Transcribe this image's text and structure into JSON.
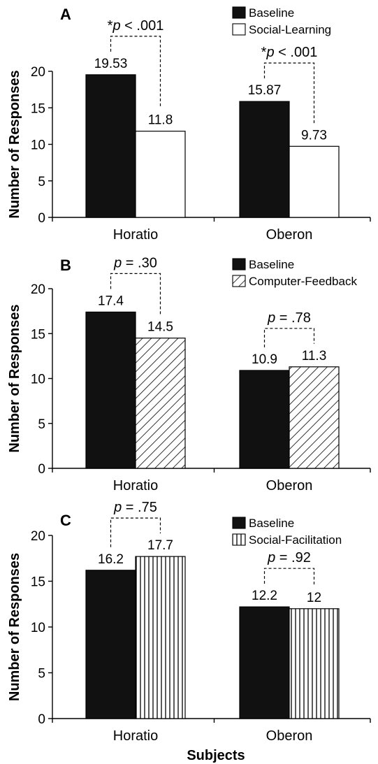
{
  "chart_data": [
    {
      "type": "bar",
      "panel_label": "A",
      "categories": [
        "Horatio",
        "Oberon"
      ],
      "series": [
        {
          "name": "Baseline",
          "values": [
            19.53,
            15.87
          ]
        },
        {
          "name": "Social-Learning",
          "values": [
            11.8,
            9.73
          ]
        }
      ],
      "data_labels": [
        [
          "19.53",
          "15.87"
        ],
        [
          "11.8",
          "9.73"
        ]
      ],
      "ylabel": "Number of Responses",
      "xlabel": "",
      "ylim": [
        0,
        20
      ],
      "yticks": [
        "0",
        "5",
        "10",
        "15",
        "20"
      ],
      "annotations": [
        {
          "star": "*",
          "p": "p",
          "rest": " < .001"
        },
        {
          "star": "*",
          "p": "p",
          "rest": " < .001"
        }
      ],
      "legend": "top-right",
      "grid": false
    },
    {
      "type": "bar",
      "panel_label": "B",
      "categories": [
        "Horatio",
        "Oberon"
      ],
      "series": [
        {
          "name": "Baseline",
          "values": [
            17.4,
            10.9
          ]
        },
        {
          "name": "Computer-Feedback",
          "values": [
            14.5,
            11.3
          ]
        }
      ],
      "data_labels": [
        [
          "17.4",
          "10.9"
        ],
        [
          "14.5",
          "11.3"
        ]
      ],
      "ylabel": "Number of Responses",
      "xlabel": "",
      "ylim": [
        0,
        20
      ],
      "yticks": [
        "0",
        "5",
        "10",
        "15",
        "20"
      ],
      "annotations": [
        {
          "star": "",
          "p": "p",
          "rest": " = .30"
        },
        {
          "star": "",
          "p": "p",
          "rest": " = .78"
        }
      ],
      "legend": "top-right",
      "grid": false
    },
    {
      "type": "bar",
      "panel_label": "C",
      "categories": [
        "Horatio",
        "Oberon"
      ],
      "series": [
        {
          "name": "Baseline",
          "values": [
            16.2,
            12.2
          ]
        },
        {
          "name": "Social-Facilitation",
          "values": [
            17.7,
            12
          ]
        }
      ],
      "data_labels": [
        [
          "16.2",
          "12.2"
        ],
        [
          "17.7",
          "12"
        ]
      ],
      "ylabel": "Number of Responses",
      "xlabel": "Subjects",
      "ylim": [
        0,
        20
      ],
      "yticks": [
        "0",
        "5",
        "10",
        "15",
        "20"
      ],
      "annotations": [
        {
          "star": "",
          "p": "p",
          "rest": " = .75"
        },
        {
          "star": "",
          "p": "p",
          "rest": " = .92"
        }
      ],
      "legend": "top-right",
      "grid": false
    }
  ],
  "colors": {
    "baseline": "#111111",
    "comparison": "#ffffff",
    "axis": "#000000"
  },
  "patterns": [
    "solid-white",
    "diagonal-hatch",
    "vertical-stripes"
  ]
}
